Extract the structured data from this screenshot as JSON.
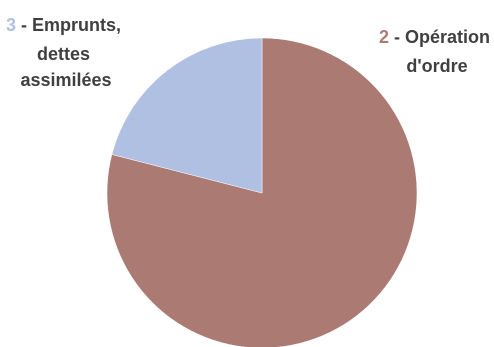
{
  "chart_data": {
    "type": "pie",
    "slices": [
      {
        "number": "2",
        "name": "Opération d'ordre",
        "line1": "Opération",
        "line2": "d'ordre",
        "value": 79,
        "color": "#ab7b73"
      },
      {
        "number": "3",
        "name": "Emprunts, dettes assimilées",
        "line1": "Emprunts,",
        "line2": "dettes",
        "line3": "assimilées",
        "value": 21,
        "color": "#b0c0e2"
      }
    ],
    "legend": "none",
    "title": ""
  }
}
